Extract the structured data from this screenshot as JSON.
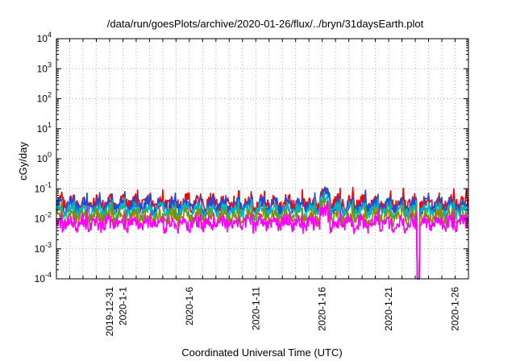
{
  "chart_data": {
    "type": "line",
    "title": "/data/run/goesPlots/archive/2020-01-26/flux/../bryn/31daysEarth.plot",
    "xlabel": "Coordinated Universal Time (UTC)",
    "ylabel": "cGy/day",
    "yscale": "log",
    "ylim": [
      0.0001,
      10000
    ],
    "xlim": [
      "2019-12-27",
      "2020-01-27"
    ],
    "grid": true,
    "y_ticks": [
      {
        "base": "10",
        "exp": "-4",
        "value": 0.0001
      },
      {
        "base": "10",
        "exp": "-3",
        "value": 0.001
      },
      {
        "base": "10",
        "exp": "-2",
        "value": 0.01
      },
      {
        "base": "10",
        "exp": "-1",
        "value": 0.1
      },
      {
        "base": "10",
        "exp": "0",
        "value": 1
      },
      {
        "base": "10",
        "exp": "1",
        "value": 10
      },
      {
        "base": "10",
        "exp": "2",
        "value": 100
      },
      {
        "base": "10",
        "exp": "3",
        "value": 1000
      },
      {
        "base": "10",
        "exp": "4",
        "value": 10000
      }
    ],
    "x_ticks": [
      {
        "label": "2019-12-31",
        "day": 4
      },
      {
        "label": "2020-1-1",
        "day": 5
      },
      {
        "label": "2020-1-6",
        "day": 10
      },
      {
        "label": "2020-1-11",
        "day": 15
      },
      {
        "label": "2020-1-16",
        "day": 20
      },
      {
        "label": "2020-1-21",
        "day": 25
      },
      {
        "label": "2020-1-26",
        "day": 30
      }
    ],
    "series": [
      {
        "color": "#ff0000",
        "level": 0.032,
        "amp": 0.24,
        "peak": 0.08
      },
      {
        "color": "#1f4fd8",
        "level": 0.026,
        "amp": 0.22,
        "peak": 0.065
      },
      {
        "color": "#00b8b8",
        "level": 0.018,
        "amp": 0.2,
        "peak": 0.045
      },
      {
        "color": "#8b8b00",
        "level": 0.011,
        "amp": 0.2,
        "peak": 0.03
      },
      {
        "color": "#ff00ff",
        "level": 0.0068,
        "amp": 0.22,
        "peak": 0.02
      }
    ],
    "dropout": {
      "start_day": 27.1,
      "end_day": 27.3,
      "value": 0.0001
    }
  }
}
